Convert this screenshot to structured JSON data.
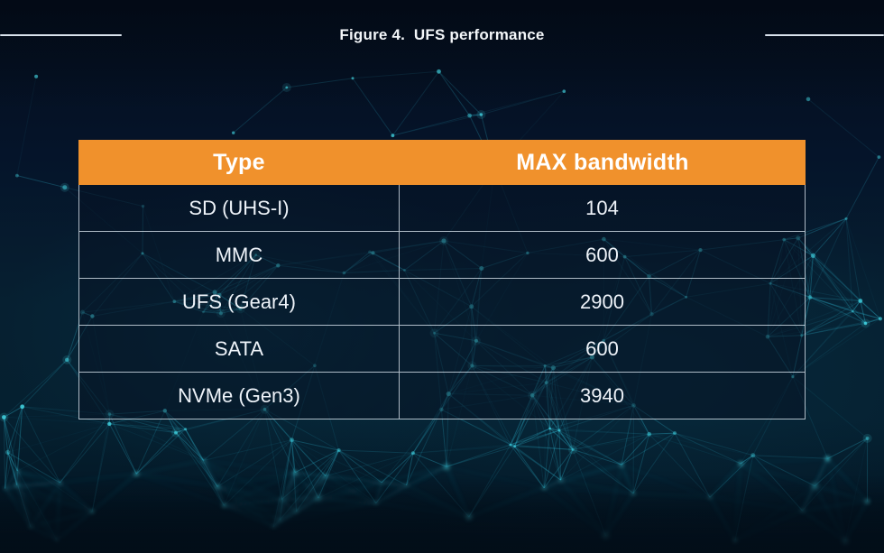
{
  "title": "Figure 4.  UFS performance",
  "table": {
    "columns": [
      "Type",
      "MAX bandwidth"
    ],
    "rows": [
      {
        "type": "SD (UHS-I)",
        "bandwidth": "104"
      },
      {
        "type": "MMC",
        "bandwidth": "600"
      },
      {
        "type": "UFS (Gear4)",
        "bandwidth": "2900"
      },
      {
        "type": "SATA",
        "bandwidth": "600"
      },
      {
        "type": "NVMe (Gen3)",
        "bandwidth": "3940"
      }
    ]
  },
  "colors": {
    "header_bg": "#F0912C",
    "header_text": "#FFFFFF",
    "row_text": "#EEF3F9",
    "grid_line": "#DEE7F0",
    "title_text": "#F4F7FA",
    "background_top": "#040D1B",
    "background_mid": "#062031",
    "plexus_line": "#2FB9D4",
    "plexus_node": "#45DBE8"
  },
  "chart_data": {
    "type": "table",
    "title": "Figure 4.  UFS performance",
    "columns": [
      "Type",
      "MAX bandwidth"
    ],
    "categories": [
      "SD (UHS-I)",
      "MMC",
      "UFS (Gear4)",
      "SATA",
      "NVMe (Gen3)"
    ],
    "values": [
      104,
      600,
      2900,
      600,
      3940
    ]
  }
}
